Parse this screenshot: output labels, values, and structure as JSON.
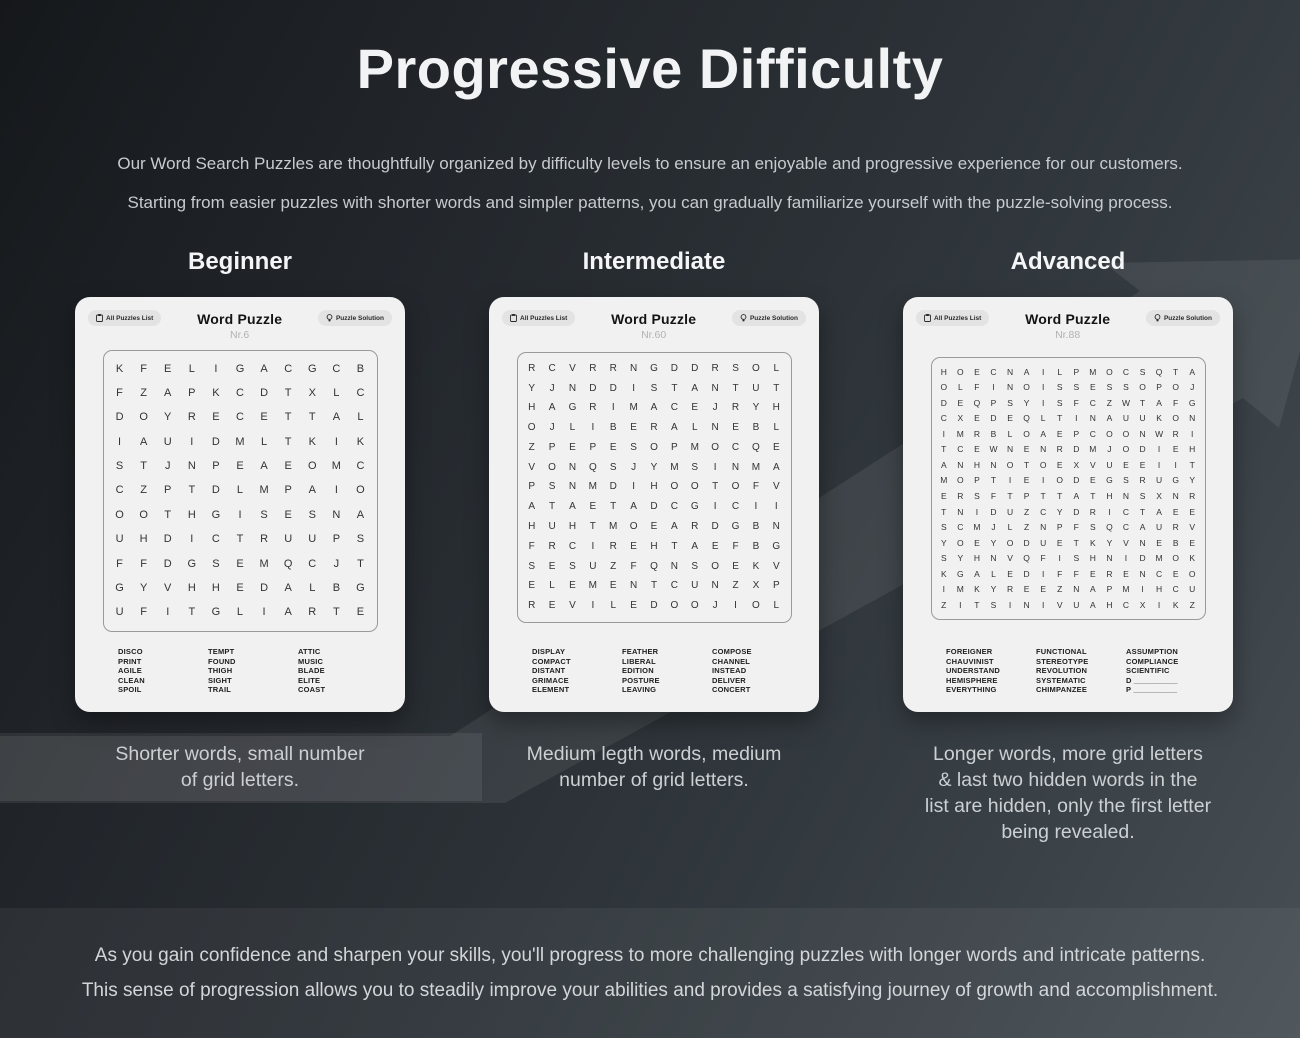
{
  "page": {
    "title": "Progressive Difficulty",
    "intro_line1": "Our Word Search Puzzles are thoughtfully organized by difficulty levels to ensure an enjoyable and progressive experience for our customers.",
    "intro_line2": "Starting from easier puzzles with shorter words and simpler patterns, you can gradually familiarize yourself with the puzzle-solving process.",
    "footer_line1": "As you gain confidence and sharpen your skills, you'll progress to more challenging puzzles with longer words and intricate patterns.",
    "footer_line2": "This sense of progression allows you to steadily improve your abilities and provides a satisfying journey of growth and accomplishment."
  },
  "colors": {
    "background_dark": "#15181b",
    "background_light": "#484f55",
    "card_background": "#f1f1f2",
    "button_background": "#e3e3e4",
    "grid_border": "#9a9a9a",
    "accent_text": "#f2f3f4",
    "muted_text": "#c7cbcf"
  },
  "cards": [
    {
      "level": "Beginner",
      "title": "Word Puzzle",
      "number": "Nr.6",
      "buttons": {
        "list": "All Puzzles List",
        "solution": "Puzzle Solution"
      },
      "grid": [
        "KFELIGACGCB",
        "FZAPKCDTXLC",
        "DOYRECETTAL",
        "IAUIDMLTKIK",
        "STJNPEAEOMC",
        "CZPTDLMPAIO",
        "OOTHGISESNA",
        "UHDICTRUUPS",
        "FFDGSEMQCJT",
        "GYVHHEDALBG",
        "UFITGLIARTE"
      ],
      "words": [
        [
          "DISCO",
          "PRINT",
          "AGILE",
          "CLEAN",
          "SPOIL"
        ],
        [
          "TEMPT",
          "FOUND",
          "THIGH",
          "SIGHT",
          "TRAIL"
        ],
        [
          "ATTIC",
          "MUSIC",
          "BLADE",
          "ELITE",
          "COAST"
        ]
      ],
      "caption": "Shorter words, small number\nof grid letters."
    },
    {
      "level": "Intermediate",
      "title": "Word Puzzle",
      "number": "Nr.60",
      "buttons": {
        "list": "All Puzzles List",
        "solution": "Puzzle Solution"
      },
      "grid": [
        "RCVRRNGDDRSOL",
        "YJNDDISTANTUT",
        "HAGRIMACEJRYH",
        "OJLIBERALNEBL",
        "ZPEPESOPMOCQE",
        "VONQSJYMSINMA",
        "PSNMDIHOOTOFV",
        "ATAETADCGICII",
        "HUHTMOEARDGBN",
        "FRCIREHTAEFBG",
        "SESUZFQNSOEKV",
        "ELEMENTCUNZXP",
        "REVILEDOOJIOL"
      ],
      "words": [
        [
          "DISPLAY",
          "COMPACT",
          "DISTANT",
          "GRIMACE",
          "ELEMENT"
        ],
        [
          "FEATHER",
          "LIBERAL",
          "EDITION",
          "POSTURE",
          "LEAVING"
        ],
        [
          "COMPOSE",
          "CHANNEL",
          "INSTEAD",
          "DELIVER",
          "CONCERT"
        ]
      ],
      "caption": "Medium legth words, medium\nnumber of grid letters."
    },
    {
      "level": "Advanced",
      "title": "Word Puzzle",
      "number": "Nr.88",
      "buttons": {
        "list": "All Puzzles List",
        "solution": "Puzzle Solution"
      },
      "grid": [
        "HOECNAILPMOCSQTA",
        "OLFINOISSESSOPOJ",
        "DEQPSYISFCZWTAFG",
        "CXEDEQLTINAUUKON",
        "IMRBLOAEPCOONWRI",
        "TCEWNENRDMJODIEH",
        "ANHNOTOEXVUEEIIT",
        "MOPTIEIODEGSRUGY",
        "ERSFTPTTATHNSXNR",
        "TNIDUZCYDRICTAEE",
        "SCMJLZNPFSQCAURV",
        "YOEYODUETKYVNEBE",
        "SYHNVQFISHNIDMOK",
        "KGALEDIFFERENCEO",
        "IMKYREEZNAPMIHCU",
        "ZITSINIVUAHCXIKZ"
      ],
      "words": [
        [
          "FOREIGNER",
          "CHAUVINIST",
          "UNDERSTAND",
          "HEMISPHERE",
          "EVERYTHING"
        ],
        [
          "FUNCTIONAL",
          "STEREOTYPE",
          "REVOLUTION",
          "SYSTEMATIC",
          "CHIMPANZEE"
        ],
        [
          "ASSUMPTION",
          "COMPLIANCE",
          "SCIENTIFIC",
          "D __________",
          "P __________"
        ]
      ],
      "caption": "Longer words, more grid letters\n& last two hidden words in the\nlist are hidden, only the first letter\nbeing revealed."
    }
  ]
}
